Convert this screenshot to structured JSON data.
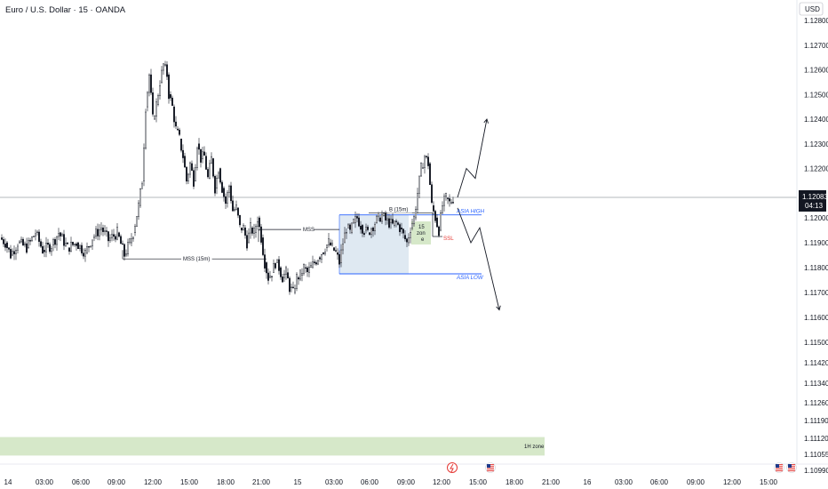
{
  "chart_title": "Euro / U.S. Dollar · 15 · OANDA",
  "currency_label": "USD",
  "price_badge": {
    "price": "1.12083",
    "countdown": "04:13"
  },
  "chart_data": {
    "type": "candlestick",
    "symbol": "EURUSD",
    "interval": "15",
    "y_range": [
      1.1095,
      1.1285
    ],
    "price_ticks": [
      "1.12800",
      "1.12700",
      "1.12600",
      "1.12500",
      "1.12400",
      "1.12300",
      "1.12200",
      "1.12000",
      "1.11900",
      "1.11800",
      "1.11700",
      "1.11600",
      "1.11500",
      "1.11420",
      "1.11340",
      "1.11260",
      "1.11190",
      "1.11120",
      "1.11055",
      "1.10990"
    ],
    "time_ticks": [
      "14",
      "03:00",
      "06:00",
      "09:00",
      "12:00",
      "15:00",
      "18:00",
      "21:00",
      "15",
      "03:00",
      "06:00",
      "09:00",
      "12:00",
      "15:00",
      "18:00",
      "21:00",
      "16",
      "03:00",
      "06:00",
      "09:00",
      "12:00",
      "15:00"
    ],
    "ohlc_path": [
      [
        0,
        1.1192
      ],
      [
        6,
        1.119
      ],
      [
        12,
        1.1185
      ],
      [
        20,
        1.119
      ],
      [
        30,
        1.1188
      ],
      [
        40,
        1.1194
      ],
      [
        48,
        1.1187
      ],
      [
        58,
        1.1189
      ],
      [
        66,
        1.1194
      ],
      [
        76,
        1.1188
      ],
      [
        86,
        1.119
      ],
      [
        96,
        1.1186
      ],
      [
        104,
        1.1192
      ],
      [
        114,
        1.1196
      ],
      [
        122,
        1.1191
      ],
      [
        132,
        1.1194
      ],
      [
        140,
        1.1185
      ],
      [
        146,
        1.119
      ],
      [
        150,
        1.1194
      ],
      [
        156,
        1.1205
      ],
      [
        160,
        1.1215
      ],
      [
        164,
        1.1245
      ],
      [
        168,
        1.1258
      ],
      [
        172,
        1.124
      ],
      [
        176,
        1.1246
      ],
      [
        180,
        1.1255
      ],
      [
        184,
        1.1262
      ],
      [
        188,
        1.1258
      ],
      [
        190,
        1.125
      ],
      [
        194,
        1.1245
      ],
      [
        198,
        1.1236
      ],
      [
        202,
        1.1232
      ],
      [
        206,
        1.1225
      ],
      [
        210,
        1.1215
      ],
      [
        214,
        1.1222
      ],
      [
        218,
        1.1215
      ],
      [
        222,
        1.123
      ],
      [
        226,
        1.1224
      ],
      [
        230,
        1.1225
      ],
      [
        234,
        1.1216
      ],
      [
        238,
        1.1224
      ],
      [
        242,
        1.1212
      ],
      [
        246,
        1.122
      ],
      [
        250,
        1.1212
      ],
      [
        254,
        1.1206
      ],
      [
        258,
        1.1213
      ],
      [
        262,
        1.1203
      ],
      [
        266,
        1.1204
      ],
      [
        270,
        1.1196
      ],
      [
        274,
        1.1196
      ],
      [
        278,
        1.119
      ],
      [
        282,
        1.1196
      ],
      [
        286,
        1.1194
      ],
      [
        290,
        1.12
      ],
      [
        294,
        1.1192
      ],
      [
        298,
        1.1182
      ],
      [
        302,
        1.1176
      ],
      [
        306,
        1.1178
      ],
      [
        310,
        1.1182
      ],
      [
        314,
        1.118
      ],
      [
        318,
        1.1176
      ],
      [
        322,
        1.1178
      ],
      [
        326,
        1.1172
      ],
      [
        330,
        1.117
      ],
      [
        334,
        1.1176
      ],
      [
        338,
        1.1177
      ],
      [
        342,
        1.118
      ],
      [
        346,
        1.1178
      ],
      [
        350,
        1.118
      ],
      [
        354,
        1.1182
      ],
      [
        358,
        1.1184
      ],
      [
        362,
        1.1186
      ],
      [
        366,
        1.1188
      ],
      [
        370,
        1.119
      ],
      [
        374,
        1.1188
      ],
      [
        378,
        1.1186
      ],
      [
        382,
        1.1182
      ],
      [
        386,
        1.119
      ],
      [
        390,
        1.1196
      ],
      [
        394,
        1.1194
      ],
      [
        398,
        1.1198
      ],
      [
        402,
        1.12
      ],
      [
        406,
        1.1197
      ],
      [
        410,
        1.1195
      ],
      [
        414,
        1.1194
      ],
      [
        418,
        1.1196
      ],
      [
        422,
        1.1198
      ],
      [
        426,
        1.12
      ],
      [
        430,
        1.1201
      ],
      [
        434,
        1.1199
      ],
      [
        438,
        1.1198
      ],
      [
        442,
        1.1197
      ],
      [
        446,
        1.1198
      ],
      [
        450,
        1.1196
      ],
      [
        454,
        1.1193
      ],
      [
        458,
        1.119
      ],
      [
        462,
        1.1196
      ],
      [
        466,
        1.12
      ],
      [
        470,
        1.121
      ],
      [
        474,
        1.122
      ],
      [
        478,
        1.1225
      ],
      [
        482,
        1.1222
      ],
      [
        486,
        1.1205
      ],
      [
        490,
        1.12
      ],
      [
        494,
        1.1195
      ],
      [
        498,
        1.1205
      ],
      [
        502,
        1.1208
      ],
      [
        506,
        1.1206
      ],
      [
        510,
        1.1208
      ]
    ],
    "annotations": {
      "asia_high": {
        "label": "ASIA HIGH",
        "price": 1.12012
      },
      "asia_low": {
        "label": "ASIA LOW",
        "price": 1.11775
      },
      "mss_15m": {
        "label": "MSS (15m)",
        "price": 1.11835
      },
      "mss": {
        "label": "MSS",
        "price": 1.11953
      },
      "b_15m": {
        "label": "B (15m)",
        "price": 1.1202
      },
      "zone_15": {
        "line1": "15",
        "line2": "zon",
        "line3": "e"
      },
      "ssl": {
        "label": "SSL"
      },
      "zone_1h": {
        "label": "1H zone",
        "top": 1.11125,
        "bottom": 1.1105
      },
      "current_price": 1.12083
    },
    "projection_up": [
      [
        1.12083,
        515
      ],
      [
        1.122,
        525
      ],
      [
        1.1216,
        535
      ],
      [
        1.124,
        548
      ]
    ],
    "projection_down": [
      [
        1.1204,
        515
      ],
      [
        1.119,
        530
      ],
      [
        1.1196,
        540
      ],
      [
        1.1163,
        562
      ]
    ]
  },
  "colors": {
    "bull": "#131722",
    "bear": "#131722",
    "asia_range_fill": "#dfe9f2",
    "zone_fill": "#d6e8c9",
    "blue": "#2962ff",
    "red": "#e53935",
    "grid_line": "#9aa0a6",
    "badge_bg": "#131722"
  },
  "icons": [
    "flash-event-icon",
    "us-flag-icon",
    "us-flag-icon",
    "us-flag-icon",
    "us-flag-icon"
  ]
}
